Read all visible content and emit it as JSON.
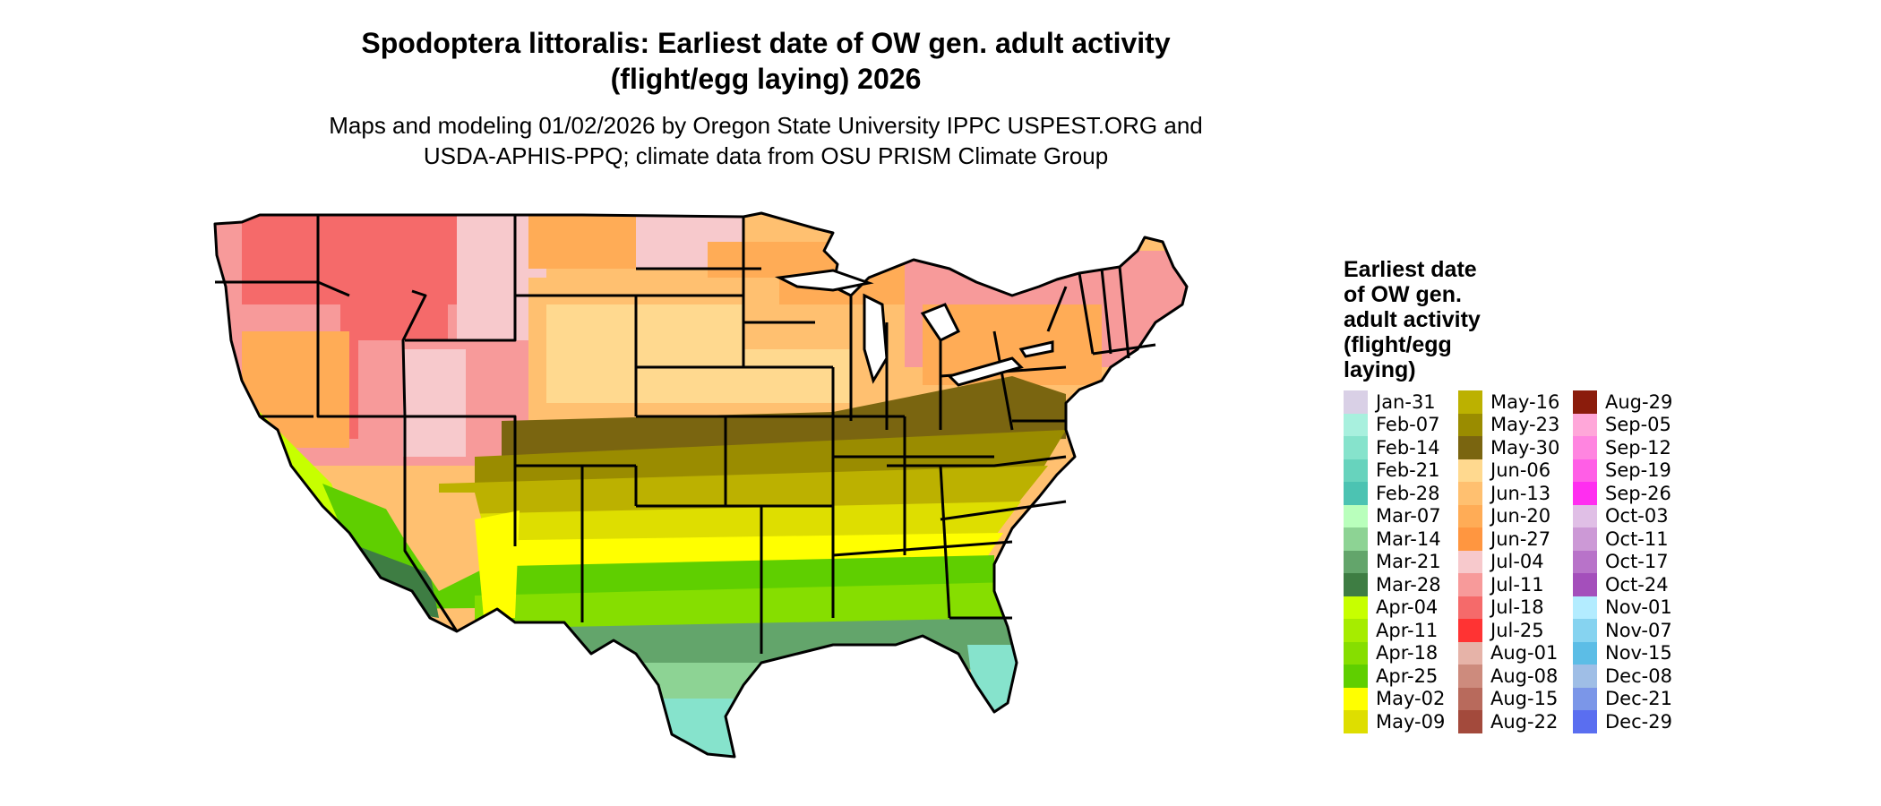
{
  "title": {
    "line1": "Spodoptera littoralis: Earliest date of OW gen. adult activity",
    "line2": "(flight/egg laying) 2026"
  },
  "subtitle": {
    "line1": "Maps and modeling 01/02/2026 by Oregon State University IPPC USPEST.ORG and",
    "line2": "USDA-APHIS-PPQ; climate data from OSU PRISM Climate Group"
  },
  "legend": {
    "title_lines": [
      "Earliest date",
      "of OW gen.",
      "adult activity",
      "(flight/egg",
      "laying)"
    ],
    "items": [
      {
        "label": "Jan-31",
        "color": "#d9d0e6"
      },
      {
        "label": "Feb-07",
        "color": "#a8f0de"
      },
      {
        "label": "Feb-14",
        "color": "#86e3cc"
      },
      {
        "label": "Feb-21",
        "color": "#67d3bd"
      },
      {
        "label": "Feb-28",
        "color": "#4cc3b2"
      },
      {
        "label": "Mar-07",
        "color": "#b9ffbc"
      },
      {
        "label": "Mar-14",
        "color": "#8dd394"
      },
      {
        "label": "Mar-21",
        "color": "#63a56b"
      },
      {
        "label": "Mar-28",
        "color": "#3e7d43"
      },
      {
        "label": "Apr-04",
        "color": "#c7ff00"
      },
      {
        "label": "Apr-11",
        "color": "#a6ec00"
      },
      {
        "label": "Apr-18",
        "color": "#86de00"
      },
      {
        "label": "Apr-25",
        "color": "#5fcf00"
      },
      {
        "label": "May-02",
        "color": "#ffff00"
      },
      {
        "label": "May-09",
        "color": "#dede00"
      },
      {
        "label": "May-16",
        "color": "#bcb100"
      },
      {
        "label": "May-23",
        "color": "#9a8c00"
      },
      {
        "label": "May-30",
        "color": "#7a6510"
      },
      {
        "label": "Jun-06",
        "color": "#ffd98f"
      },
      {
        "label": "Jun-13",
        "color": "#ffc070"
      },
      {
        "label": "Jun-20",
        "color": "#ffac56"
      },
      {
        "label": "Jun-27",
        "color": "#ff9640"
      },
      {
        "label": "Jul-04",
        "color": "#f7c9cc"
      },
      {
        "label": "Jul-11",
        "color": "#f79a9a"
      },
      {
        "label": "Jul-18",
        "color": "#f56a6a"
      },
      {
        "label": "Jul-25",
        "color": "#ff3333"
      },
      {
        "label": "Aug-01",
        "color": "#e6b3a8"
      },
      {
        "label": "Aug-08",
        "color": "#cd8b7d"
      },
      {
        "label": "Aug-15",
        "color": "#b86a5c"
      },
      {
        "label": "Aug-22",
        "color": "#a34a3c"
      },
      {
        "label": "Aug-29",
        "color": "#8b1c0c"
      },
      {
        "label": "Sep-05",
        "color": "#ffa7d9"
      },
      {
        "label": "Sep-12",
        "color": "#ff85e0"
      },
      {
        "label": "Sep-19",
        "color": "#ff5ee6"
      },
      {
        "label": "Sep-26",
        "color": "#ff2ef0"
      },
      {
        "label": "Oct-03",
        "color": "#e0bfe6"
      },
      {
        "label": "Oct-11",
        "color": "#cc99d6"
      },
      {
        "label": "Oct-17",
        "color": "#b873c9"
      },
      {
        "label": "Oct-24",
        "color": "#a44fbb"
      },
      {
        "label": "Nov-01",
        "color": "#b3ecff"
      },
      {
        "label": "Nov-07",
        "color": "#86d3f0"
      },
      {
        "label": "Nov-15",
        "color": "#5cbde6"
      },
      {
        "label": "Dec-08",
        "color": "#9fbee6"
      },
      {
        "label": "Dec-21",
        "color": "#7b96e8"
      },
      {
        "label": "Dec-29",
        "color": "#5a6ef0"
      }
    ]
  }
}
